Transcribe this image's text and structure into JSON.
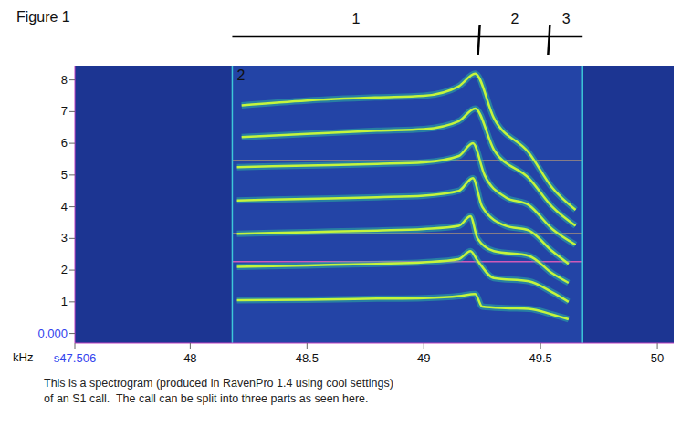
{
  "chart_data": {
    "type": "line",
    "title": "Figure 1",
    "caption": [
      "This is a spectrogram (produced in RavenPro 1.4 using cool settings)",
      "of an S1 call.  The call can be split into three parts as seen here."
    ],
    "y_label": "kHz",
    "xlim": [
      47.506,
      50.07
    ],
    "xticks": [
      {
        "value": 47.506,
        "label": "s47.506"
      },
      48,
      48.5,
      49,
      49.5,
      50
    ],
    "ylim": [
      -0.3,
      8.45
    ],
    "yticks": [
      {
        "value": 0,
        "label": "0.000"
      },
      1,
      2,
      3,
      4,
      5,
      6,
      7,
      8
    ],
    "grid": false,
    "color": "#c4f53c",
    "series": [
      {
        "x": [
          48.2,
          48.5,
          48.8,
          49.0,
          49.15,
          49.22,
          49.25,
          49.35,
          49.45,
          49.55,
          49.62
        ],
        "values": [
          1.05,
          1.07,
          1.1,
          1.12,
          1.18,
          1.25,
          0.85,
          0.8,
          0.78,
          0.6,
          0.45
        ]
      },
      {
        "x": [
          48.2,
          48.5,
          48.8,
          49.0,
          49.15,
          49.2,
          49.23,
          49.3,
          49.45,
          49.55,
          49.62
        ],
        "values": [
          2.1,
          2.15,
          2.2,
          2.25,
          2.35,
          2.6,
          2.3,
          1.75,
          1.65,
          1.3,
          1.0
        ]
      },
      {
        "x": [
          48.2,
          48.5,
          48.8,
          49.0,
          49.15,
          49.2,
          49.23,
          49.3,
          49.45,
          49.55,
          49.62
        ],
        "values": [
          3.15,
          3.2,
          3.25,
          3.3,
          3.4,
          3.7,
          3.0,
          2.6,
          2.45,
          1.9,
          1.6
        ]
      },
      {
        "x": [
          48.2,
          48.5,
          48.8,
          49.0,
          49.15,
          49.21,
          49.25,
          49.35,
          49.45,
          49.55,
          49.62
        ],
        "values": [
          4.2,
          4.25,
          4.3,
          4.35,
          4.5,
          4.9,
          4.0,
          3.4,
          3.25,
          2.6,
          2.2
        ]
      },
      {
        "x": [
          48.2,
          48.5,
          48.8,
          49.0,
          49.15,
          49.21,
          49.26,
          49.35,
          49.45,
          49.55,
          49.65
        ],
        "values": [
          5.25,
          5.3,
          5.35,
          5.4,
          5.6,
          6.0,
          5.0,
          4.3,
          4.05,
          3.3,
          2.8
        ]
      },
      {
        "x": [
          48.22,
          48.5,
          48.8,
          49.0,
          49.15,
          49.22,
          49.3,
          49.45,
          49.55,
          49.65
        ],
        "values": [
          6.2,
          6.3,
          6.4,
          6.45,
          6.7,
          7.1,
          5.8,
          4.9,
          4.0,
          3.4
        ]
      },
      {
        "x": [
          48.22,
          48.5,
          48.8,
          49.0,
          49.15,
          49.22,
          49.3,
          49.45,
          49.55,
          49.65
        ],
        "values": [
          7.2,
          7.35,
          7.45,
          7.5,
          7.8,
          8.2,
          6.8,
          5.7,
          4.6,
          3.9
        ]
      }
    ],
    "selection": {
      "label": "2",
      "x": [
        48.18,
        49.68
      ]
    },
    "reference_lines": [
      {
        "y": 5.45,
        "x": [
          48.18,
          49.68
        ],
        "color": "#e8b468"
      },
      {
        "y": 3.15,
        "x": [
          48.18,
          49.68
        ],
        "color": "#e8b468"
      },
      {
        "y": 2.27,
        "x": [
          48.18,
          49.68
        ],
        "color": "#d05ab8"
      }
    ],
    "segments": [
      {
        "label": "1",
        "x": [
          48.18,
          49.24
        ]
      },
      {
        "label": "2",
        "x": [
          49.24,
          49.54
        ]
      },
      {
        "label": "3",
        "x": [
          49.54,
          49.68
        ]
      }
    ]
  }
}
